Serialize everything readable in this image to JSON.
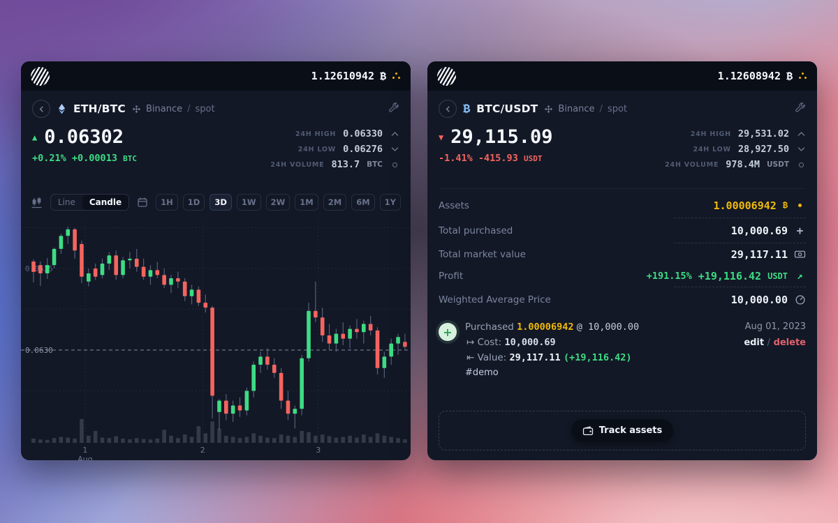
{
  "colors": {
    "up": "#3ddc84",
    "down": "#f4645f",
    "gold": "#f0b90b",
    "blue": "#8abdf5",
    "grid": "#242c3f",
    "axis_text": "#6e7890",
    "price_line": "#828ca0",
    "volume_bar": "#39414f"
  },
  "left": {
    "topbar": {
      "balance": "1.12610942",
      "currency": "₿"
    },
    "header": {
      "pair": "ETH/BTC",
      "exchange": "Binance",
      "separator": "/",
      "market": "spot"
    },
    "price": {
      "value": "0.06302",
      "direction": "up",
      "change_pct": "+0.21%",
      "change_abs": "+0.00013",
      "unit": "BTC"
    },
    "stats": [
      {
        "label": "24H HIGH",
        "value": "0.06330",
        "unit": ""
      },
      {
        "label": "24H LOW",
        "value": "0.06276",
        "unit": ""
      },
      {
        "label": "24H VOLUME",
        "value": "813.7",
        "unit": "BTC"
      }
    ],
    "toolbar": {
      "line": "Line",
      "candle": "Candle",
      "active_chart_type": "Candle",
      "timeframes": [
        "1H",
        "1D",
        "3D",
        "1W",
        "2W",
        "1M",
        "2M",
        "6M",
        "1Y"
      ],
      "active_timeframe": "3D"
    },
    "chart_data": {
      "type": "candlestick",
      "pair": "ETH/BTC",
      "timeframe": "3D",
      "y_axis_labels": [
        {
          "text": "0.0635",
          "price": 0.0635
        },
        {
          "text": "0.0630",
          "price": 0.063
        }
      ],
      "current_price_line": 0.063,
      "ylim": [
        0.06245,
        0.0638
      ],
      "grid_prices": [
        0.06375,
        0.0635,
        0.06325,
        0.06275
      ],
      "x_ticks": [
        {
          "index": 7.5,
          "lines": [
            "1",
            "Aug"
          ]
        },
        {
          "index": 24.6,
          "lines": [
            "2"
          ]
        },
        {
          "index": 41.4,
          "lines": [
            "3"
          ]
        }
      ],
      "candles": [
        [
          0.063543,
          0.063556,
          0.063415,
          0.063479
        ],
        [
          0.063521,
          0.063543,
          0.063393,
          0.06347
        ],
        [
          0.06347,
          0.063564,
          0.063436,
          0.063521
        ],
        [
          0.063521,
          0.063628,
          0.0635,
          0.06362
        ],
        [
          0.06362,
          0.063713,
          0.06359,
          0.0637
        ],
        [
          0.0637,
          0.063756,
          0.06365,
          0.06374
        ],
        [
          0.06374,
          0.063749,
          0.06356,
          0.06361
        ],
        [
          0.06365,
          0.06367,
          0.06341,
          0.06345
        ],
        [
          0.06342,
          0.0635,
          0.06339,
          0.06347
        ],
        [
          0.0635,
          0.06353,
          0.06343,
          0.06345
        ],
        [
          0.06346,
          0.06356,
          0.06344,
          0.06353
        ],
        [
          0.06353,
          0.0636,
          0.06349,
          0.06358
        ],
        [
          0.06358,
          0.06361,
          0.06343,
          0.06346
        ],
        [
          0.06346,
          0.06357,
          0.06344,
          0.06355
        ],
        [
          0.06355,
          0.0636,
          0.0635,
          0.06356
        ],
        [
          0.06356,
          0.06362,
          0.06348,
          0.06351
        ],
        [
          0.06351,
          0.06356,
          0.06343,
          0.06345
        ],
        [
          0.06345,
          0.06352,
          0.0634,
          0.06349
        ],
        [
          0.06349,
          0.06354,
          0.06344,
          0.06346
        ],
        [
          0.06346,
          0.0635,
          0.06338,
          0.0634
        ],
        [
          0.0634,
          0.06346,
          0.06335,
          0.06344
        ],
        [
          0.06344,
          0.06348,
          0.06338,
          0.06342
        ],
        [
          0.06342,
          0.06344,
          0.0633,
          0.06333
        ],
        [
          0.06333,
          0.0634,
          0.06328,
          0.06337
        ],
        [
          0.06337,
          0.06339,
          0.06327,
          0.06329
        ],
        [
          0.06329,
          0.06334,
          0.06323,
          0.06326
        ],
        [
          0.06326,
          0.06327,
          0.06258,
          0.06272
        ],
        [
          0.06262,
          0.0627,
          0.06251,
          0.06269
        ],
        [
          0.06269,
          0.06273,
          0.06257,
          0.06261
        ],
        [
          0.06261,
          0.06269,
          0.06256,
          0.06266
        ],
        [
          0.06266,
          0.06271,
          0.06259,
          0.06263
        ],
        [
          0.06263,
          0.06277,
          0.0626,
          0.06275
        ],
        [
          0.06275,
          0.06293,
          0.06271,
          0.06291
        ],
        [
          0.06291,
          0.06299,
          0.06286,
          0.06296
        ],
        [
          0.06296,
          0.06301,
          0.06288,
          0.06291
        ],
        [
          0.06291,
          0.06295,
          0.06283,
          0.06286
        ],
        [
          0.06286,
          0.06289,
          0.06264,
          0.06269
        ],
        [
          0.06269,
          0.06275,
          0.06257,
          0.06261
        ],
        [
          0.06261,
          0.06266,
          0.06252,
          0.06264
        ],
        [
          0.06264,
          0.06297,
          0.0626,
          0.06295
        ],
        [
          0.06295,
          0.06329,
          0.06293,
          0.06324
        ],
        [
          0.06324,
          0.06342,
          0.06317,
          0.0632
        ],
        [
          0.0632,
          0.06326,
          0.06305,
          0.06309
        ],
        [
          0.06309,
          0.06316,
          0.063,
          0.06304
        ],
        [
          0.06304,
          0.06313,
          0.06299,
          0.0631
        ],
        [
          0.0631,
          0.06317,
          0.06303,
          0.06307
        ],
        [
          0.06307,
          0.06315,
          0.06301,
          0.06313
        ],
        [
          0.06313,
          0.06319,
          0.06307,
          0.06311
        ],
        [
          0.06311,
          0.06318,
          0.06304,
          0.06316
        ],
        [
          0.06316,
          0.06321,
          0.06309,
          0.06312
        ],
        [
          0.06312,
          0.06314,
          0.06285,
          0.06289
        ],
        [
          0.06289,
          0.06299,
          0.06283,
          0.06296
        ],
        [
          0.06296,
          0.06307,
          0.06291,
          0.06304
        ],
        [
          0.06304,
          0.0631,
          0.06297,
          0.06308
        ],
        [
          0.06305,
          0.0631,
          0.063,
          0.06302
        ]
      ],
      "volume": [
        0.18,
        0.14,
        0.12,
        0.2,
        0.25,
        0.22,
        0.18,
        1.0,
        0.3,
        0.5,
        0.22,
        0.2,
        0.28,
        0.18,
        0.15,
        0.2,
        0.16,
        0.14,
        0.18,
        0.55,
        0.3,
        0.2,
        0.35,
        0.25,
        0.7,
        0.4,
        0.9,
        0.6,
        0.3,
        0.25,
        0.2,
        0.25,
        0.4,
        0.3,
        0.22,
        0.2,
        0.35,
        0.3,
        0.25,
        0.5,
        0.45,
        0.3,
        0.35,
        0.28,
        0.22,
        0.25,
        0.3,
        0.22,
        0.35,
        0.25,
        0.4,
        0.3,
        0.25,
        0.2,
        0.15
      ]
    }
  },
  "right": {
    "topbar": {
      "balance": "1.12608942",
      "currency": "₿"
    },
    "header": {
      "pair": "BTC/USDT",
      "exchange": "Binance",
      "separator": "/",
      "market": "spot"
    },
    "price": {
      "value": "29,115.09",
      "direction": "down",
      "change_pct": "-1.41%",
      "change_abs": "-415.93",
      "unit": "USDT"
    },
    "stats": [
      {
        "label": "24H HIGH",
        "value": "29,531.02",
        "unit": ""
      },
      {
        "label": "24H LOW",
        "value": "28,927.50",
        "unit": ""
      },
      {
        "label": "24H VOLUME",
        "value": "978.4M",
        "unit": "USDT"
      }
    ],
    "rows": [
      {
        "label": "Assets",
        "value": "1.00006942",
        "unit": "₿"
      },
      {
        "label": "Total purchased",
        "value": "10,000.69"
      },
      {
        "label": "Total market value",
        "value": "29,117.11"
      },
      {
        "label": "Profit",
        "pct": "+191.15%",
        "value": "+19,116.42",
        "unit": "USDT"
      },
      {
        "label": "Weighted Average Price",
        "value": "10,000.00"
      }
    ],
    "transaction": {
      "action": "Purchased",
      "amount": "1.00006942",
      "at": "@ 10,000.00",
      "cost_arrow": "↦",
      "cost_label": "Cost:",
      "cost": "10,000.69",
      "value_arrow": "⇤",
      "value_label": "Value:",
      "value": "29,117.11",
      "value_gain": "(+19,116.42)",
      "tag": "#demo",
      "date": "Aug 01, 2023",
      "edit": "edit",
      "slash": "/",
      "delete": "delete"
    },
    "track": {
      "label": "Track assets"
    }
  }
}
